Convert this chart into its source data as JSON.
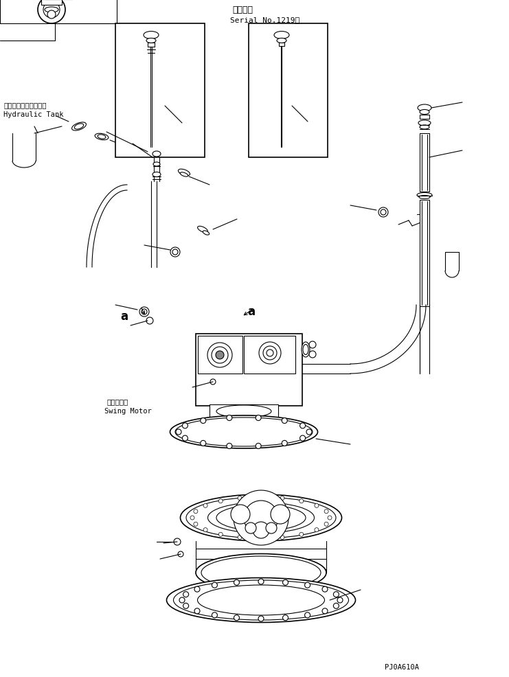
{
  "bg_color": "#ffffff",
  "line_color": "#000000",
  "title_text1": "適用号機",
  "title_text2": "Serial No.1219～",
  "label_hydraulic_jp": "ハイドロリックタンク",
  "label_hydraulic_en": "Hydraulic Tank",
  "label_swing_jp": "旋回モータ",
  "label_swing_en": "Swing Motor",
  "label_a1": "a",
  "label_a2": "a",
  "part_code": "PJ0A610A",
  "fig_width": 7.41,
  "fig_height": 9.87,
  "dpi": 100
}
